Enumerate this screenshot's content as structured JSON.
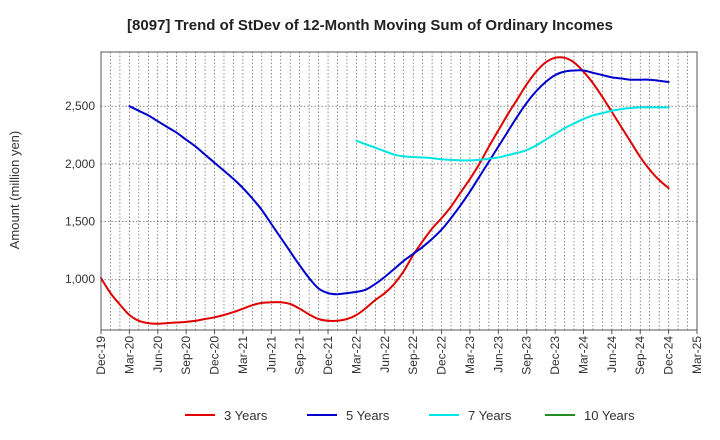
{
  "chart_data": {
    "type": "line",
    "title": "[8097]  Trend of StDev of 12-Month Moving Sum of Ordinary Incomes",
    "xlabel": "",
    "ylabel": "Amount (million yen)",
    "x_ticks": [
      "Dec-19",
      "Mar-20",
      "Jun-20",
      "Sep-20",
      "Dec-20",
      "Mar-21",
      "Jun-21",
      "Sep-21",
      "Dec-21",
      "Mar-22",
      "Jun-22",
      "Sep-22",
      "Dec-22",
      "Mar-23",
      "Jun-23",
      "Sep-23",
      "Dec-23",
      "Mar-24",
      "Jun-24",
      "Sep-24",
      "Dec-24",
      "Mar-25"
    ],
    "y_ticks": [
      1000,
      1500,
      2000,
      2500
    ],
    "y_tick_labels": [
      "1,000",
      "1,500",
      "2,000",
      "2,500"
    ],
    "ylim": [
      560,
      2970
    ],
    "xlim_months": [
      "Dec-19",
      "Mar-25"
    ],
    "grid": true,
    "legend_position": "bottom",
    "series": [
      {
        "name": "3 Years",
        "color": "#e00000",
        "x": [
          "Dec-19",
          "Jan-20",
          "Feb-20",
          "Mar-20",
          "Apr-20",
          "May-20",
          "Jun-20",
          "Jul-20",
          "Aug-20",
          "Sep-20",
          "Oct-20",
          "Nov-20",
          "Dec-20",
          "Jan-21",
          "Feb-21",
          "Mar-21",
          "Apr-21",
          "May-21",
          "Jun-21",
          "Jul-21",
          "Aug-21",
          "Sep-21",
          "Oct-21",
          "Nov-21",
          "Dec-21",
          "Jan-22",
          "Feb-22",
          "Mar-22",
          "Apr-22",
          "May-22",
          "Jun-22",
          "Jul-22",
          "Aug-22",
          "Sep-22",
          "Oct-22",
          "Nov-22",
          "Dec-22",
          "Jan-23",
          "Feb-23",
          "Mar-23",
          "Apr-23",
          "May-23",
          "Jun-23",
          "Jul-23",
          "Aug-23",
          "Sep-23",
          "Oct-23",
          "Nov-23",
          "Dec-23",
          "Jan-24",
          "Feb-24",
          "Mar-24",
          "Apr-24",
          "May-24",
          "Jun-24",
          "Jul-24",
          "Aug-24",
          "Sep-24",
          "Oct-24",
          "Nov-24",
          "Dec-24"
        ],
        "values": [
          1010,
          880,
          780,
          690,
          640,
          620,
          615,
          620,
          625,
          630,
          640,
          655,
          670,
          690,
          715,
          745,
          775,
          795,
          800,
          800,
          785,
          745,
          695,
          655,
          640,
          640,
          655,
          690,
          750,
          820,
          880,
          960,
          1070,
          1210,
          1330,
          1440,
          1530,
          1630,
          1750,
          1870,
          2000,
          2150,
          2290,
          2430,
          2560,
          2690,
          2800,
          2880,
          2920,
          2920,
          2880,
          2800,
          2700,
          2580,
          2450,
          2320,
          2190,
          2060,
          1950,
          1860,
          1790
        ]
      },
      {
        "name": "5 Years",
        "color": "#0000cc",
        "x": [
          "Mar-20",
          "Apr-20",
          "May-20",
          "Jun-20",
          "Jul-20",
          "Aug-20",
          "Sep-20",
          "Oct-20",
          "Nov-20",
          "Dec-20",
          "Jan-21",
          "Feb-21",
          "Mar-21",
          "Apr-21",
          "May-21",
          "Jun-21",
          "Jul-21",
          "Aug-21",
          "Sep-21",
          "Oct-21",
          "Nov-21",
          "Dec-21",
          "Jan-22",
          "Feb-22",
          "Mar-22",
          "Apr-22",
          "May-22",
          "Jun-22",
          "Jul-22",
          "Aug-22",
          "Sep-22",
          "Oct-22",
          "Nov-22",
          "Dec-22",
          "Jan-23",
          "Feb-23",
          "Mar-23",
          "Apr-23",
          "May-23",
          "Jun-23",
          "Jul-23",
          "Aug-23",
          "Sep-23",
          "Oct-23",
          "Nov-23",
          "Dec-23",
          "Jan-24",
          "Feb-24",
          "Mar-24",
          "Apr-24",
          "May-24",
          "Jun-24",
          "Jul-24",
          "Aug-24",
          "Sep-24",
          "Oct-24",
          "Nov-24",
          "Dec-24"
        ],
        "values": [
          2500,
          2460,
          2420,
          2370,
          2320,
          2270,
          2210,
          2150,
          2080,
          2010,
          1940,
          1870,
          1790,
          1700,
          1600,
          1480,
          1360,
          1240,
          1120,
          1010,
          920,
          880,
          870,
          880,
          890,
          910,
          960,
          1020,
          1090,
          1160,
          1220,
          1280,
          1350,
          1430,
          1530,
          1640,
          1760,
          1890,
          2020,
          2150,
          2280,
          2410,
          2530,
          2630,
          2710,
          2770,
          2800,
          2810,
          2810,
          2790,
          2770,
          2750,
          2740,
          2730,
          2730,
          2730,
          2720,
          2710
        ]
      },
      {
        "name": "7 Years",
        "color": "#00e5e5",
        "x": [
          "Mar-22",
          "Apr-22",
          "May-22",
          "Jun-22",
          "Jul-22",
          "Aug-22",
          "Sep-22",
          "Oct-22",
          "Nov-22",
          "Dec-22",
          "Jan-23",
          "Feb-23",
          "Mar-23",
          "Apr-23",
          "May-23",
          "Jun-23",
          "Jul-23",
          "Aug-23",
          "Sep-23",
          "Oct-23",
          "Nov-23",
          "Dec-23",
          "Jan-24",
          "Feb-24",
          "Mar-24",
          "Apr-24",
          "May-24",
          "Jun-24",
          "Jul-24",
          "Aug-24",
          "Sep-24",
          "Oct-24",
          "Nov-24",
          "Dec-24"
        ],
        "values": [
          2200,
          2170,
          2140,
          2110,
          2080,
          2065,
          2060,
          2055,
          2050,
          2040,
          2035,
          2030,
          2030,
          2035,
          2045,
          2055,
          2075,
          2095,
          2120,
          2160,
          2210,
          2260,
          2310,
          2350,
          2390,
          2420,
          2440,
          2460,
          2475,
          2485,
          2490,
          2490,
          2490,
          2490
        ]
      },
      {
        "name": "10 Years",
        "color": "#228b22",
        "x": [],
        "values": []
      }
    ]
  }
}
